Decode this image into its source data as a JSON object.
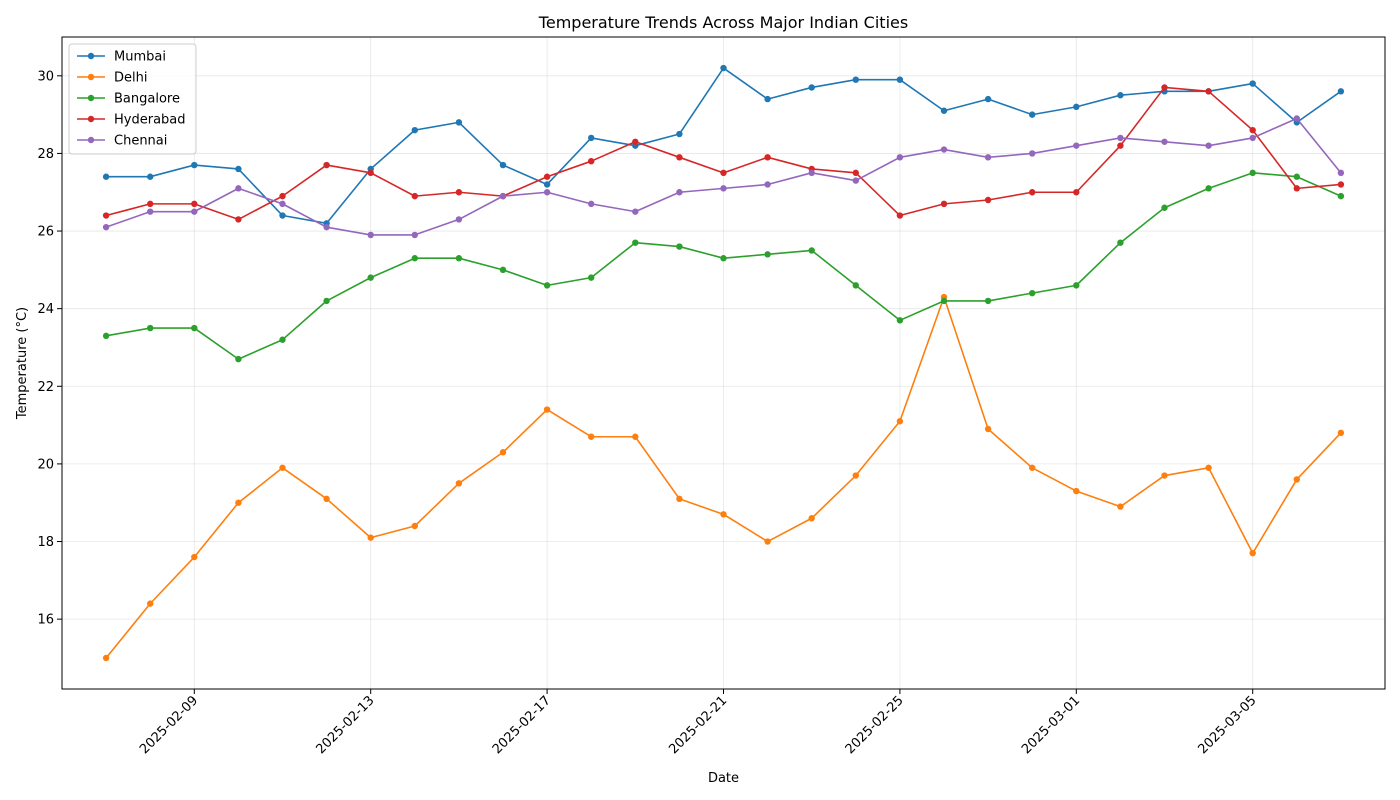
{
  "chart_data": {
    "type": "line",
    "title": "Temperature Trends Across Major Indian Cities",
    "xlabel": "Date",
    "ylabel": "Temperature (°C)",
    "x": [
      "2025-02-07",
      "2025-02-08",
      "2025-02-09",
      "2025-02-10",
      "2025-02-11",
      "2025-02-12",
      "2025-02-13",
      "2025-02-14",
      "2025-02-15",
      "2025-02-16",
      "2025-02-17",
      "2025-02-18",
      "2025-02-19",
      "2025-02-20",
      "2025-02-21",
      "2025-02-22",
      "2025-02-23",
      "2025-02-24",
      "2025-02-25",
      "2025-02-26",
      "2025-02-27",
      "2025-02-28",
      "2025-03-01",
      "2025-03-02",
      "2025-03-03",
      "2025-03-04",
      "2025-03-05",
      "2025-03-06",
      "2025-03-07"
    ],
    "x_ticks": [
      "2025-02-09",
      "2025-02-13",
      "2025-02-17",
      "2025-02-21",
      "2025-02-25",
      "2025-03-01",
      "2025-03-05"
    ],
    "y_ticks": [
      16,
      18,
      20,
      22,
      24,
      26,
      28,
      30
    ],
    "ylim": [
      14.2,
      31.0
    ],
    "xlim": [
      "2025-02-06",
      "2025-03-08"
    ],
    "grid": true,
    "legend_position": "top-left",
    "series": [
      {
        "name": "Mumbai",
        "color": "#1f77b4",
        "values": [
          27.4,
          27.4,
          27.7,
          27.6,
          26.4,
          26.2,
          27.6,
          28.6,
          28.8,
          27.7,
          27.2,
          28.4,
          28.2,
          28.5,
          30.2,
          29.4,
          29.7,
          29.9,
          29.9,
          29.1,
          29.4,
          29.0,
          29.2,
          29.5,
          29.6,
          29.6,
          29.8,
          28.8,
          29.6
        ]
      },
      {
        "name": "Delhi",
        "color": "#ff7f0e",
        "values": [
          15.0,
          16.4,
          17.6,
          19.0,
          19.9,
          19.1,
          18.1,
          18.4,
          19.5,
          20.3,
          21.4,
          20.7,
          20.7,
          19.1,
          18.7,
          18.0,
          18.6,
          19.7,
          21.1,
          24.3,
          20.9,
          19.9,
          19.3,
          18.9,
          19.7,
          19.9,
          17.7,
          19.6,
          20.8
        ]
      },
      {
        "name": "Bangalore",
        "color": "#2ca02c",
        "values": [
          23.3,
          23.5,
          23.5,
          22.7,
          23.2,
          24.2,
          24.8,
          25.3,
          25.3,
          25.0,
          24.6,
          24.8,
          25.7,
          25.6,
          25.3,
          25.4,
          25.5,
          24.6,
          23.7,
          24.2,
          24.2,
          24.4,
          24.6,
          25.7,
          26.6,
          27.1,
          27.5,
          27.4,
          26.9
        ]
      },
      {
        "name": "Hyderabad",
        "color": "#d62728",
        "values": [
          26.4,
          26.7,
          26.7,
          26.3,
          26.9,
          27.7,
          27.5,
          26.9,
          27.0,
          26.9,
          27.4,
          27.8,
          28.3,
          27.9,
          27.5,
          27.9,
          27.6,
          27.5,
          26.4,
          26.7,
          26.8,
          27.0,
          27.0,
          28.2,
          29.7,
          29.6,
          28.6,
          27.1,
          27.2
        ]
      },
      {
        "name": "Chennai",
        "color": "#9467bd",
        "values": [
          26.1,
          26.5,
          26.5,
          27.1,
          26.7,
          26.1,
          25.9,
          25.9,
          26.3,
          26.9,
          27.0,
          26.7,
          26.5,
          27.0,
          27.1,
          27.2,
          27.5,
          27.3,
          27.9,
          28.1,
          27.9,
          28.0,
          28.2,
          28.4,
          28.3,
          28.2,
          28.4,
          28.9,
          27.5
        ]
      }
    ]
  }
}
